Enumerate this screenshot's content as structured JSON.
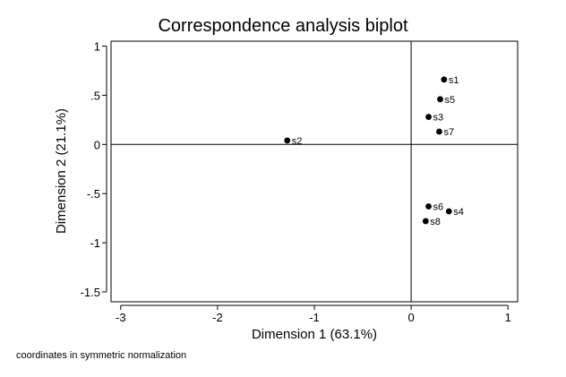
{
  "chart_data": {
    "type": "scatter",
    "title": "Correspondence analysis biplot",
    "xlabel": "Dimension 1 (63.1%)",
    "ylabel": "Dimension 2 (21.1%)",
    "note": "coordinates in symmetric normalization",
    "xlim": [
      -3.1,
      1.1
    ],
    "ylim": [
      -1.6,
      1.05
    ],
    "xticks": [
      {
        "value": -3,
        "label": "-3"
      },
      {
        "value": -2,
        "label": "-2"
      },
      {
        "value": -1,
        "label": "-1"
      },
      {
        "value": 0,
        "label": "0"
      },
      {
        "value": 1,
        "label": "1"
      }
    ],
    "yticks": [
      {
        "value": 1,
        "label": "1"
      },
      {
        "value": 0.5,
        "label": ".5"
      },
      {
        "value": 0,
        "label": "0"
      },
      {
        "value": -0.5,
        "label": "-.5"
      },
      {
        "value": -1,
        "label": "-1"
      },
      {
        "value": -1.5,
        "label": "-1.5"
      }
    ],
    "reference_lines": {
      "x": 0,
      "y": 0
    },
    "grid": false,
    "points": [
      {
        "label": "s1",
        "x": 0.34,
        "y": 0.66
      },
      {
        "label": "s5",
        "x": 0.3,
        "y": 0.46
      },
      {
        "label": "s3",
        "x": 0.18,
        "y": 0.28
      },
      {
        "label": "s7",
        "x": 0.29,
        "y": 0.13
      },
      {
        "label": "s2",
        "x": -1.28,
        "y": 0.04
      },
      {
        "label": "s6",
        "x": 0.18,
        "y": -0.63
      },
      {
        "label": "s4",
        "x": 0.39,
        "y": -0.68
      },
      {
        "label": "s8",
        "x": 0.15,
        "y": -0.78
      }
    ]
  }
}
